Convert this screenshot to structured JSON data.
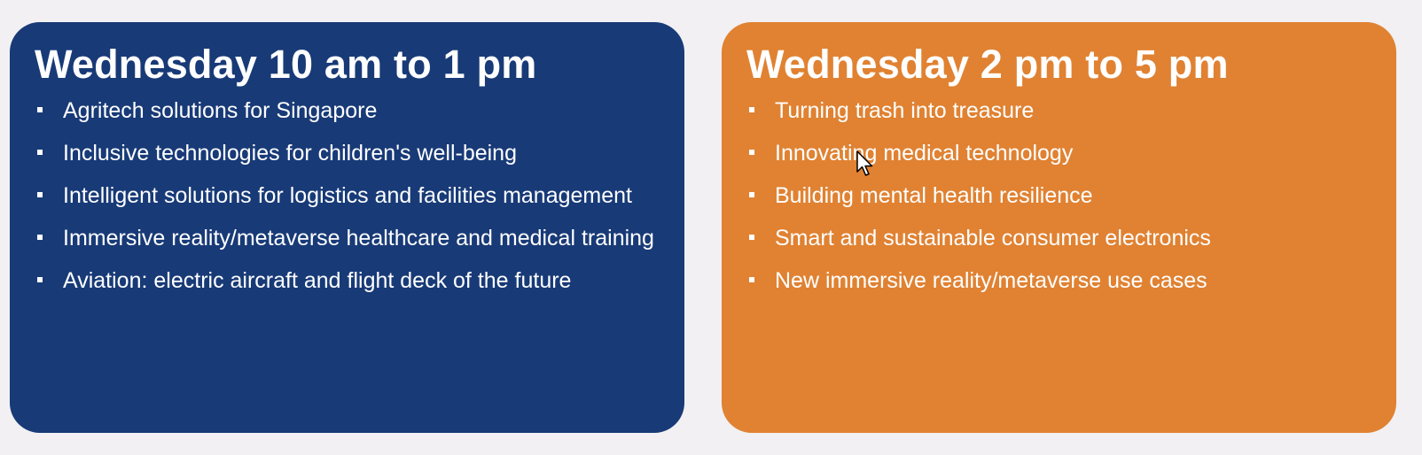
{
  "sessions": [
    {
      "title": "Wednesday 10 am to 1 pm",
      "color": "#183a77",
      "topics": [
        "Agritech solutions for Singapore",
        "Inclusive technologies for children's well-being",
        "Intelligent solutions for logistics and facilities management",
        "Immersive reality/metaverse healthcare and medical training",
        "Aviation: electric aircraft and flight deck of the future"
      ]
    },
    {
      "title": "Wednesday 2 pm to 5 pm",
      "color": "#e08232",
      "topics": [
        "Turning trash into treasure",
        "Innovating medical technology",
        "Building mental health resilience",
        "Smart and sustainable consumer electronics",
        "New immersive reality/metaverse use cases"
      ]
    }
  ],
  "cursor": {
    "icon": "mouse-pointer-icon"
  }
}
